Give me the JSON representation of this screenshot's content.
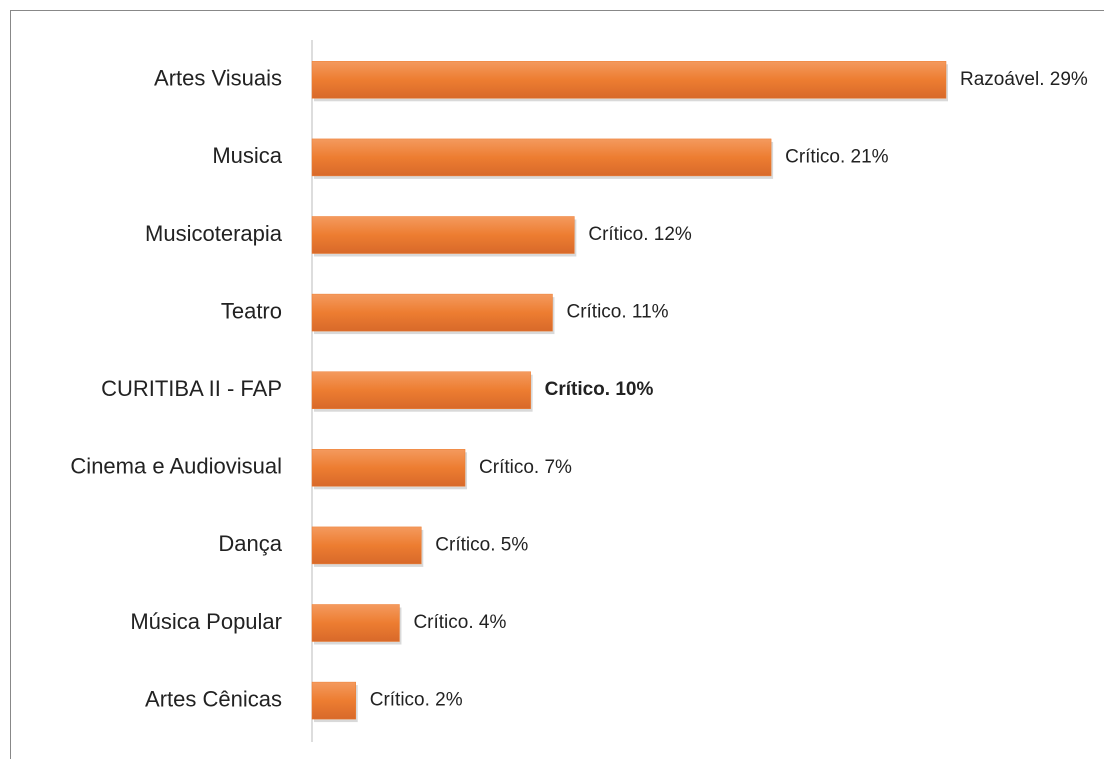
{
  "chart_data": {
    "type": "bar",
    "orientation": "horizontal",
    "categories": [
      "Artes Visuais",
      "Musica",
      "Musicoterapia",
      "Teatro",
      "CURITIBA II - FAP",
      "Cinema e Audiovisual",
      "Dança",
      "Música Popular",
      "Artes Cênicas"
    ],
    "values": [
      29,
      21,
      12,
      11,
      10,
      7,
      5,
      4,
      2
    ],
    "value_labels": [
      "Razoável. 29%",
      "Crítico. 21%",
      "Crítico. 12%",
      "Crítico. 11%",
      "Crítico. 10%",
      "Crítico. 7%",
      "Crítico. 5%",
      "Crítico. 4%",
      "Crítico. 2%"
    ],
    "color": "#ed7d31",
    "bold_label_indices": [
      4
    ]
  }
}
